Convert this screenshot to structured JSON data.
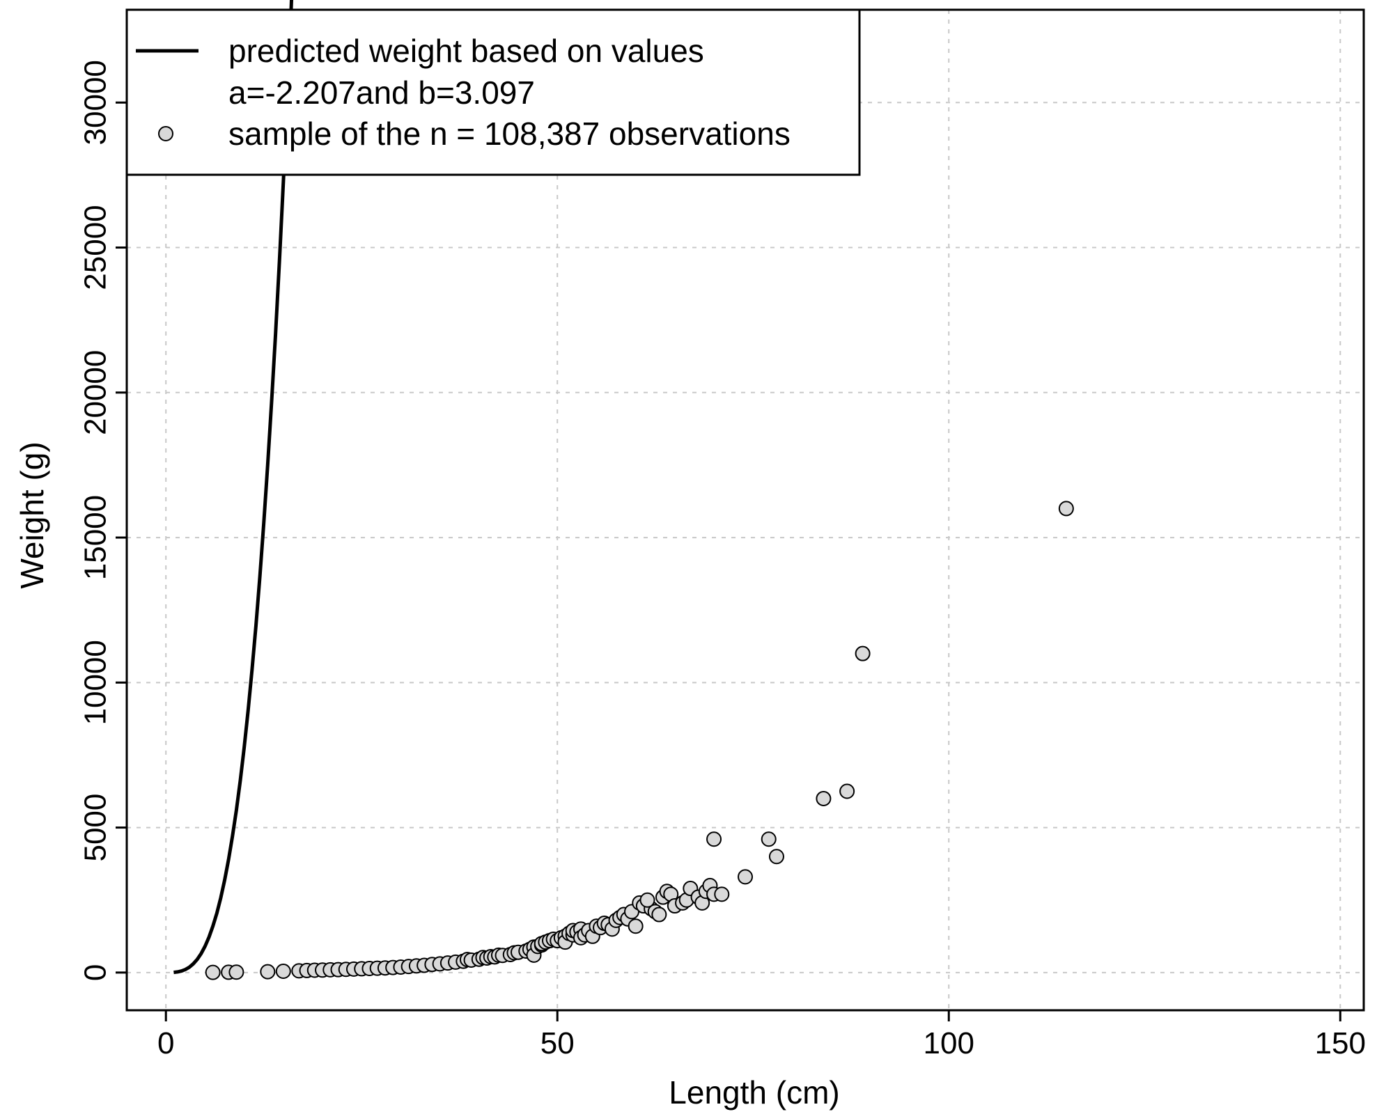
{
  "chart_data": {
    "type": "scatter",
    "title": "",
    "xlabel": "Length (cm)",
    "ylabel": "Weight (g)",
    "xlim": [
      -5,
      153
    ],
    "ylim": [
      -1300,
      33200
    ],
    "xticks": [
      0,
      50,
      100,
      150
    ],
    "yticks": [
      0,
      5000,
      10000,
      15000,
      20000,
      25000,
      30000
    ],
    "xtick_labels": [
      "0",
      "50",
      "100",
      "150"
    ],
    "ytick_labels": [
      "0",
      "5000",
      "10000",
      "15000",
      "20000",
      "25000",
      "30000"
    ],
    "grid": true,
    "legend_position": "top-left",
    "legend": {
      "line_label": "predicted weight based on values",
      "line_label_2": "a=-2.207and b=3.097",
      "points_label": "sample of the n = 108,387 observations"
    },
    "series": [
      {
        "type": "line",
        "a": -2.207,
        "b": 3.097,
        "x_range": [
          1,
          147
        ],
        "color": "#000000"
      },
      {
        "type": "scatter",
        "marker_fill": "#d9d9d9",
        "marker_edge": "#000000",
        "points": [
          [
            6,
            5
          ],
          [
            8,
            10
          ],
          [
            9,
            15
          ],
          [
            13,
            30
          ],
          [
            15,
            45
          ],
          [
            17,
            60
          ],
          [
            18,
            70
          ],
          [
            19,
            80
          ],
          [
            20,
            85
          ],
          [
            21,
            95
          ],
          [
            22,
            100
          ],
          [
            23,
            110
          ],
          [
            24,
            120
          ],
          [
            25,
            130
          ],
          [
            26,
            140
          ],
          [
            27,
            150
          ],
          [
            28,
            160
          ],
          [
            29,
            175
          ],
          [
            30,
            190
          ],
          [
            31,
            210
          ],
          [
            32,
            230
          ],
          [
            33,
            250
          ],
          [
            34,
            280
          ],
          [
            35,
            300
          ],
          [
            36,
            330
          ],
          [
            37,
            360
          ],
          [
            38,
            390
          ],
          [
            38.5,
            450
          ],
          [
            39,
            430
          ],
          [
            40,
            460
          ],
          [
            40.5,
            520
          ],
          [
            41,
            500
          ],
          [
            41.5,
            550
          ],
          [
            42,
            540
          ],
          [
            42.5,
            600
          ],
          [
            43,
            590
          ],
          [
            44,
            620
          ],
          [
            44.5,
            680
          ],
          [
            45,
            700
          ],
          [
            46,
            740
          ],
          [
            46.5,
            800
          ],
          [
            47,
            880
          ],
          [
            47,
            600
          ],
          [
            47.5,
            900
          ],
          [
            48,
            950
          ],
          [
            48,
            1000
          ],
          [
            48.5,
            1050
          ],
          [
            49,
            1100
          ],
          [
            49.5,
            1150
          ],
          [
            50,
            1100
          ],
          [
            50.5,
            1200
          ],
          [
            51,
            1250
          ],
          [
            51,
            1050
          ],
          [
            51.5,
            1350
          ],
          [
            52,
            1300
          ],
          [
            52,
            1450
          ],
          [
            52.5,
            1400
          ],
          [
            53,
            1500
          ],
          [
            53,
            1200
          ],
          [
            53.5,
            1300
          ],
          [
            54,
            1450
          ],
          [
            54.5,
            1250
          ],
          [
            55,
            1600
          ],
          [
            55.5,
            1550
          ],
          [
            56,
            1700
          ],
          [
            56.5,
            1650
          ],
          [
            57,
            1500
          ],
          [
            57.5,
            1800
          ],
          [
            58,
            1900
          ],
          [
            58.5,
            2000
          ],
          [
            59,
            1850
          ],
          [
            59.5,
            2100
          ],
          [
            60,
            1600
          ],
          [
            60.5,
            2400
          ],
          [
            61,
            2300
          ],
          [
            62,
            2200
          ],
          [
            62.5,
            2100
          ],
          [
            63,
            2000
          ],
          [
            63.5,
            2600
          ],
          [
            64,
            2800
          ],
          [
            64.5,
            2700
          ],
          [
            65,
            2300
          ],
          [
            66,
            2400
          ],
          [
            66.5,
            2500
          ],
          [
            67,
            2900
          ],
          [
            68,
            2600
          ],
          [
            68.5,
            2400
          ],
          [
            69,
            2800
          ],
          [
            69.5,
            3000
          ],
          [
            70,
            2700
          ],
          [
            70,
            4600
          ],
          [
            71,
            2700
          ],
          [
            74,
            3300
          ],
          [
            77,
            4600
          ],
          [
            78,
            4000
          ],
          [
            84,
            6000
          ],
          [
            87,
            6250
          ],
          [
            89,
            11000
          ],
          [
            115,
            16000
          ],
          [
            61.5,
            2500
          ]
        ]
      }
    ]
  }
}
